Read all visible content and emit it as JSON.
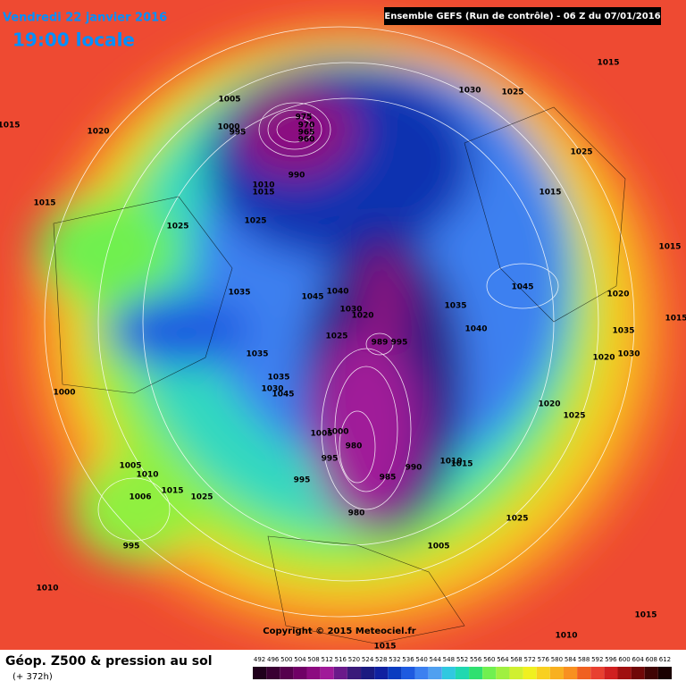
{
  "header": {
    "date": "Vendredi 22 janvier 2016",
    "time": "19:00 locale",
    "run": "Ensemble GEFS  (Run de contrôle)  -  06 Z du 07/01/2016"
  },
  "map": {
    "pressure_labels": [
      "1015",
      "1020",
      "1015",
      "1005",
      "1000",
      "995",
      "975",
      "970",
      "965",
      "960",
      "990",
      "1010",
      "1015",
      "1025",
      "1025",
      "1035",
      "1045",
      "1040",
      "1030",
      "1020",
      "1025",
      "989",
      "995",
      "1035",
      "1035",
      "1030",
      "1045",
      "1000",
      "1005",
      "1000",
      "980",
      "995",
      "995",
      "985",
      "990",
      "1010",
      "1015",
      "980",
      "1005",
      "1010",
      "1006",
      "1015",
      "1025",
      "995",
      "1010",
      "1005",
      "1025",
      "1010",
      "1015",
      "1015",
      "1030",
      "1025",
      "1015",
      "1025",
      "1015",
      "1015",
      "1045",
      "1035",
      "1040",
      "1020",
      "1035",
      "1020",
      "1030",
      "1020",
      "1025",
      "1015"
    ],
    "credit": "Copyright © 2015 Meteociel.fr"
  },
  "footer": {
    "title": "Géop. Z500 & pression au sol",
    "lead": "(+ 372h)"
  },
  "legend": {
    "ticks": [
      492,
      496,
      500,
      504,
      508,
      512,
      516,
      520,
      524,
      528,
      532,
      536,
      540,
      544,
      548,
      552,
      556,
      560,
      564,
      568,
      572,
      576,
      580,
      584,
      588,
      592,
      596,
      600,
      604,
      608,
      612
    ],
    "colors": [
      "#20001c",
      "#3a0033",
      "#56004d",
      "#700066",
      "#8c0a80",
      "#a01a99",
      "#6a1a8a",
      "#3a1a7a",
      "#1a1a80",
      "#1020a0",
      "#0a3cc0",
      "#1e5ae0",
      "#3c80f0",
      "#50a0f0",
      "#30c8e0",
      "#20d8b0",
      "#30e070",
      "#70f050",
      "#a0f040",
      "#d0f030",
      "#f0f020",
      "#f8d020",
      "#f8b020",
      "#f89020",
      "#f06020",
      "#e84030",
      "#d02020",
      "#a01010",
      "#700808",
      "#400404",
      "#1a0000"
    ]
  }
}
